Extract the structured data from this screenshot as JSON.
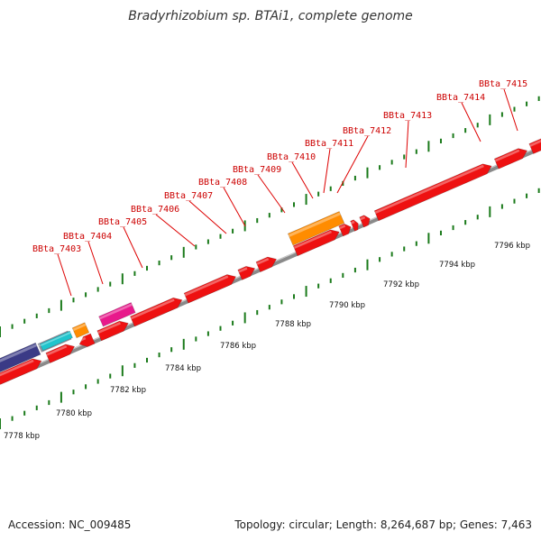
{
  "title": "Bradyrhizobium sp. BTAi1, complete genome",
  "footer": {
    "accession": "Accession: NC_009485",
    "stats": "Topology: circular; Length: 8,264,687 bp; Genes: 7,463"
  },
  "colors": {
    "gene_red": "#ee1111",
    "gene_orange": "#ff8c00",
    "gene_magenta": "#e8198b",
    "gene_navy": "#3a3a86",
    "gene_cyan": "#1fc4cc",
    "gene_gray": "#9a9aaa",
    "backbone": "#8a8a8a",
    "tick_green": "#1a7a1a",
    "label_red": "#cc0000"
  },
  "gene_labels": [
    "BBta_7403",
    "BBta_7404",
    "BBta_7405",
    "BBta_7406",
    "BBta_7407",
    "BBta_7408",
    "BBta_7409",
    "BBta_7410",
    "BBta_7411",
    "BBta_7412",
    "BBta_7413",
    "BBta_7414",
    "BBta_7415"
  ],
  "scale_labels": [
    "7778 kbp",
    "7780 kbp",
    "7782 kbp",
    "7784 kbp",
    "7786 kbp",
    "7788 kbp",
    "7790 kbp",
    "7792 kbp",
    "7794 kbp",
    "7796 kbp"
  ]
}
